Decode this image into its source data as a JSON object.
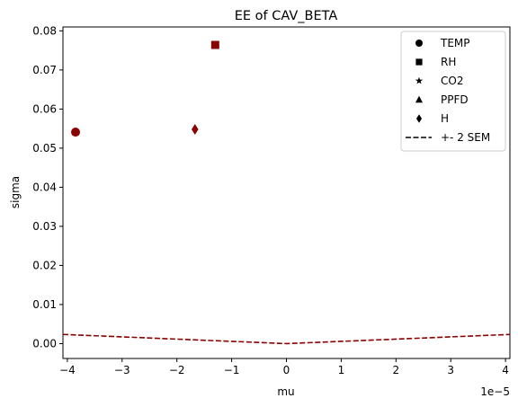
{
  "chart_data": {
    "type": "scatter",
    "title": "EE of CAV_BETA",
    "xlabel": "mu",
    "ylabel": "sigma",
    "x_scale_label": "1e−5",
    "xlim": [
      -4.08,
      4.08
    ],
    "ylim": [
      -0.0038,
      0.081
    ],
    "x_ticks": [
      {
        "value": -4,
        "label": "−4"
      },
      {
        "value": -3,
        "label": "−3"
      },
      {
        "value": -2,
        "label": "−2"
      },
      {
        "value": -1,
        "label": "−1"
      },
      {
        "value": 0,
        "label": "0"
      },
      {
        "value": 1,
        "label": "1"
      },
      {
        "value": 2,
        "label": "2"
      },
      {
        "value": 3,
        "label": "3"
      },
      {
        "value": 4,
        "label": "4"
      }
    ],
    "y_ticks": [
      {
        "value": 0.0,
        "label": "0.00"
      },
      {
        "value": 0.01,
        "label": "0.01"
      },
      {
        "value": 0.02,
        "label": "0.02"
      },
      {
        "value": 0.03,
        "label": "0.03"
      },
      {
        "value": 0.04,
        "label": "0.04"
      },
      {
        "value": 0.05,
        "label": "0.05"
      },
      {
        "value": 0.06,
        "label": "0.06"
      },
      {
        "value": 0.07,
        "label": "0.07"
      },
      {
        "value": 0.08,
        "label": "0.08"
      }
    ],
    "grid": false,
    "legend_position": "top-right",
    "marker_color": "#8b0000",
    "line_color": "#8b0000",
    "series": [
      {
        "name": "TEMP",
        "marker": "circle",
        "x": -3.85,
        "y": 0.0541
      },
      {
        "name": "RH",
        "marker": "square",
        "x": -1.3,
        "y": 0.0764
      },
      {
        "name": "CO2",
        "marker": "star",
        "x": null,
        "y": null
      },
      {
        "name": "PPFD",
        "marker": "triangle",
        "x": null,
        "y": null
      },
      {
        "name": "H",
        "marker": "diamond",
        "x": -1.67,
        "y": 0.0548
      }
    ],
    "sem_line": {
      "name": "+- 2 SEM",
      "x": [
        -4.08,
        -3,
        -2,
        -1,
        0,
        1,
        2,
        3,
        4.08
      ],
      "y": [
        0.00235,
        0.00173,
        0.00115,
        0.00058,
        0.0,
        0.00058,
        0.00115,
        0.00173,
        0.00235
      ]
    }
  }
}
